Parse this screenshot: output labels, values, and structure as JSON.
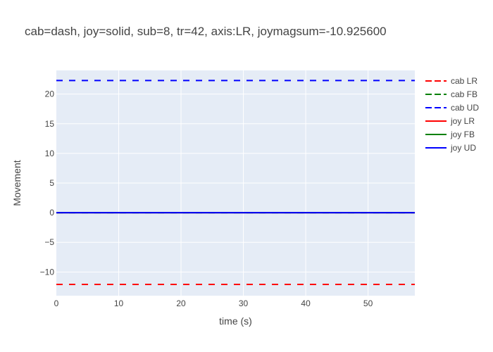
{
  "chart_data": {
    "type": "line",
    "title": "cab=dash, joy=solid, sub=8, tr=42, axis:LR, joymagsum=-10.925600",
    "xlabel": "time (s)",
    "ylabel": "Movement",
    "xlim": [
      0,
      57.5
    ],
    "ylim": [
      -14,
      24
    ],
    "x_ticks": [
      0,
      10,
      20,
      30,
      40,
      50
    ],
    "y_ticks": [
      -10,
      -5,
      0,
      5,
      10,
      15,
      20
    ],
    "y_tick_labels": [
      "−10",
      "−5",
      "0",
      "5",
      "10",
      "15",
      "20"
    ],
    "grid": true,
    "legend_position": "top-right",
    "series": [
      {
        "name": "cab LR",
        "color": "#ff0000",
        "dash": "dash",
        "x": [
          0,
          57.5
        ],
        "y": [
          -12.1,
          -12.1
        ]
      },
      {
        "name": "cab FB",
        "color": "#008000",
        "dash": "dash",
        "x": [
          0,
          57.5
        ],
        "y": [
          0,
          0
        ]
      },
      {
        "name": "cab UD",
        "color": "#0000ff",
        "dash": "dash",
        "x": [
          0,
          57.5
        ],
        "y": [
          22.3,
          22.3
        ]
      },
      {
        "name": "joy LR",
        "color": "#ff0000",
        "dash": "solid",
        "x": [
          0,
          57.5
        ],
        "y": [
          0,
          0
        ]
      },
      {
        "name": "joy FB",
        "color": "#008000",
        "dash": "solid",
        "x": [
          0,
          57.5
        ],
        "y": [
          0,
          0
        ]
      },
      {
        "name": "joy UD",
        "color": "#0000ff",
        "dash": "solid",
        "x": [
          0,
          57.5
        ],
        "y": [
          0,
          0
        ]
      }
    ]
  }
}
